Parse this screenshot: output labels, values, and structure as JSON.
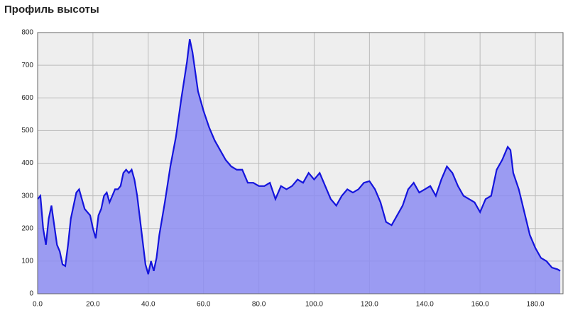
{
  "chart_data": {
    "type": "area",
    "title": "Профиль высоты",
    "x": [
      0,
      1,
      2,
      3,
      4,
      5,
      6,
      7,
      8,
      9,
      10,
      11,
      12,
      13,
      14,
      15,
      16,
      17,
      18,
      19,
      20,
      21,
      22,
      23,
      24,
      25,
      26,
      27,
      28,
      29,
      30,
      31,
      32,
      33,
      34,
      35,
      36,
      37,
      38,
      39,
      40,
      41,
      42,
      43,
      44,
      45,
      46,
      48,
      50,
      52,
      54,
      55,
      56,
      57,
      58,
      60,
      62,
      64,
      66,
      68,
      70,
      72,
      74,
      76,
      78,
      80,
      82,
      84,
      86,
      88,
      90,
      92,
      94,
      96,
      98,
      100,
      102,
      104,
      106,
      108,
      110,
      112,
      114,
      116,
      118,
      120,
      122,
      124,
      126,
      128,
      130,
      132,
      134,
      136,
      138,
      140,
      142,
      144,
      146,
      148,
      150,
      152,
      154,
      156,
      158,
      160,
      162,
      164,
      166,
      168,
      170,
      171,
      172,
      174,
      176,
      178,
      180,
      182,
      184,
      186,
      188,
      189
    ],
    "values": [
      290,
      300,
      200,
      150,
      230,
      270,
      210,
      150,
      130,
      90,
      85,
      150,
      230,
      270,
      310,
      320,
      290,
      260,
      250,
      240,
      200,
      170,
      240,
      260,
      300,
      310,
      280,
      300,
      320,
      320,
      330,
      370,
      380,
      370,
      380,
      350,
      300,
      230,
      160,
      90,
      60,
      100,
      70,
      110,
      180,
      230,
      280,
      390,
      480,
      600,
      710,
      780,
      740,
      680,
      620,
      560,
      510,
      470,
      440,
      410,
      390,
      380,
      380,
      340,
      340,
      330,
      330,
      340,
      290,
      330,
      320,
      330,
      350,
      340,
      370,
      350,
      370,
      330,
      290,
      270,
      300,
      320,
      310,
      320,
      340,
      345,
      320,
      280,
      220,
      210,
      240,
      270,
      320,
      340,
      310,
      320,
      330,
      300,
      350,
      390,
      370,
      330,
      300,
      290,
      280,
      250,
      290,
      300,
      380,
      410,
      450,
      440,
      370,
      320,
      250,
      180,
      140,
      110,
      100,
      80,
      75,
      70
    ],
    "line_color": "#1414dc",
    "fill_color": "#8c8cf2",
    "xlim": [
      0,
      190
    ],
    "ylim": [
      0,
      800
    ],
    "xticks": [
      {
        "value": 0,
        "label": "0.0"
      },
      {
        "value": 20,
        "label": "20.0"
      },
      {
        "value": 40,
        "label": "40.0"
      },
      {
        "value": 60,
        "label": "60.0"
      },
      {
        "value": 80,
        "label": "80.0"
      },
      {
        "value": 100,
        "label": "100.0"
      },
      {
        "value": 120,
        "label": "120.0"
      },
      {
        "value": 140,
        "label": "140.0"
      },
      {
        "value": 160,
        "label": "160.0"
      },
      {
        "value": 180,
        "label": "180.0"
      }
    ],
    "yticks": [
      0,
      100,
      200,
      300,
      400,
      500,
      600,
      700,
      800
    ],
    "grid": true
  }
}
